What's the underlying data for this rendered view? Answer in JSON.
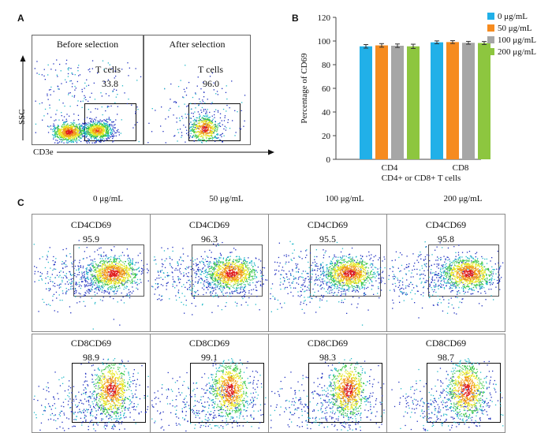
{
  "panels": {
    "a": "A",
    "b": "B",
    "c": "C"
  },
  "panel_a": {
    "plots": [
      {
        "title": "Before selection",
        "gate_label": "T cells",
        "value": "33.8"
      },
      {
        "title": "After selection",
        "gate_label": "T cells",
        "value": "96.0"
      }
    ],
    "y_axis": "SSC",
    "x_axis": "CD3e"
  },
  "panel_c": {
    "columns": [
      "0 μg/mL",
      "50 μg/mL",
      "100 μg/mL",
      "200 μg/mL"
    ],
    "rows": [
      {
        "label": "CD4CD69",
        "values": [
          "95.9",
          "96.3",
          "95.5",
          "95.8"
        ]
      },
      {
        "label": "CD8CD69",
        "values": [
          "98.9",
          "99.1",
          "98.3",
          "98.7"
        ]
      }
    ]
  },
  "chart_data": {
    "type": "bar",
    "categories": [
      "CD4",
      "CD8"
    ],
    "xlabel": "CD4+ or CD8+ T cells",
    "ylabel": "Percentage of CD69",
    "ylim": [
      0,
      120
    ],
    "yticks": [
      0,
      20,
      40,
      60,
      80,
      100,
      120
    ],
    "legend_position": "top-right",
    "series": [
      {
        "name": "0 μg/mL",
        "color": "#21b0e8",
        "values": [
          95.5,
          98.9
        ],
        "errors": [
          1.5,
          1.2
        ]
      },
      {
        "name": "50 μg/mL",
        "color": "#f68b1f",
        "values": [
          96.3,
          99.1
        ],
        "errors": [
          1.5,
          1.2
        ]
      },
      {
        "name": "100 μg/mL",
        "color": "#a6a6a6",
        "values": [
          96.0,
          98.5
        ],
        "errors": [
          1.5,
          1.2
        ]
      },
      {
        "name": "200 μg/mL",
        "color": "#8dc63f",
        "values": [
          95.5,
          98.3
        ],
        "errors": [
          1.8,
          1.3
        ]
      }
    ]
  }
}
